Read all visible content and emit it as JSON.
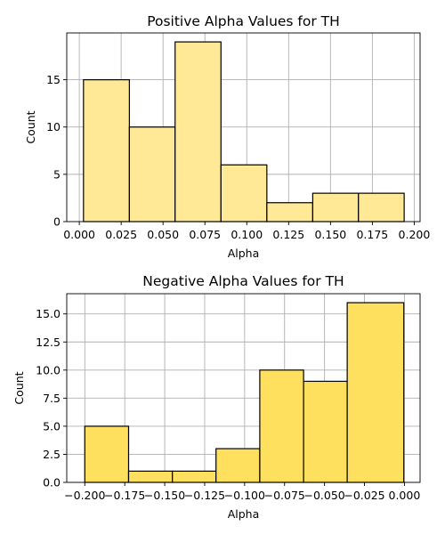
{
  "chart_data": [
    {
      "type": "bar",
      "title": "Positive Alpha Values for TH",
      "xlabel": "Alpha",
      "ylabel": "Count",
      "color": "#ffe896",
      "xlim": [
        -0.0075,
        0.2035
      ],
      "ylim": [
        0,
        19.95
      ],
      "xticks": [
        0.0,
        0.025,
        0.05,
        0.075,
        0.1,
        0.125,
        0.15,
        0.175,
        0.2
      ],
      "xtick_labels": [
        "0.000",
        "0.025",
        "0.050",
        "0.075",
        "0.100",
        "0.125",
        "0.150",
        "0.175",
        "0.200"
      ],
      "yticks": [
        0,
        5,
        10,
        15
      ],
      "ytick_labels": [
        "0",
        "5",
        "10",
        "15"
      ],
      "grid": true,
      "bins": [
        {
          "x0": 0.0025,
          "x1": 0.0299,
          "count": 15
        },
        {
          "x0": 0.0299,
          "x1": 0.0572,
          "count": 10
        },
        {
          "x0": 0.0572,
          "x1": 0.0846,
          "count": 19
        },
        {
          "x0": 0.0846,
          "x1": 0.112,
          "count": 6
        },
        {
          "x0": 0.112,
          "x1": 0.1394,
          "count": 2
        },
        {
          "x0": 0.1394,
          "x1": 0.1667,
          "count": 3
        },
        {
          "x0": 0.1667,
          "x1": 0.194,
          "count": 3
        }
      ]
    },
    {
      "type": "bar",
      "title": "Negative Alpha Values for TH",
      "xlabel": "Alpha",
      "ylabel": "Count",
      "color": "#ffdf5e",
      "xlim": [
        -0.2113,
        0.0098
      ],
      "ylim": [
        0,
        16.8
      ],
      "xticks": [
        -0.2,
        -0.175,
        -0.15,
        -0.125,
        -0.1,
        -0.075,
        -0.05,
        -0.025,
        0.0
      ],
      "xtick_labels": [
        "−0.200",
        "−0.175",
        "−0.150",
        "−0.125",
        "−0.100",
        "−0.075",
        "−0.050",
        "−0.025",
        "0.000"
      ],
      "yticks": [
        0,
        2.5,
        5,
        7.5,
        10,
        12.5,
        15
      ],
      "ytick_labels": [
        "0.0",
        "2.5",
        "5.0",
        "7.5",
        "10.0",
        "12.5",
        "15.0"
      ],
      "grid": true,
      "bins": [
        {
          "x0": -0.2,
          "x1": -0.1726,
          "count": 5
        },
        {
          "x0": -0.1726,
          "x1": -0.1452,
          "count": 1
        },
        {
          "x0": -0.1452,
          "x1": -0.1179,
          "count": 1
        },
        {
          "x0": -0.1179,
          "x1": -0.0905,
          "count": 3
        },
        {
          "x0": -0.0905,
          "x1": -0.0631,
          "count": 10
        },
        {
          "x0": -0.0631,
          "x1": -0.0358,
          "count": 9
        },
        {
          "x0": -0.0358,
          "x1": -0.0004,
          "count": 16
        }
      ]
    }
  ]
}
